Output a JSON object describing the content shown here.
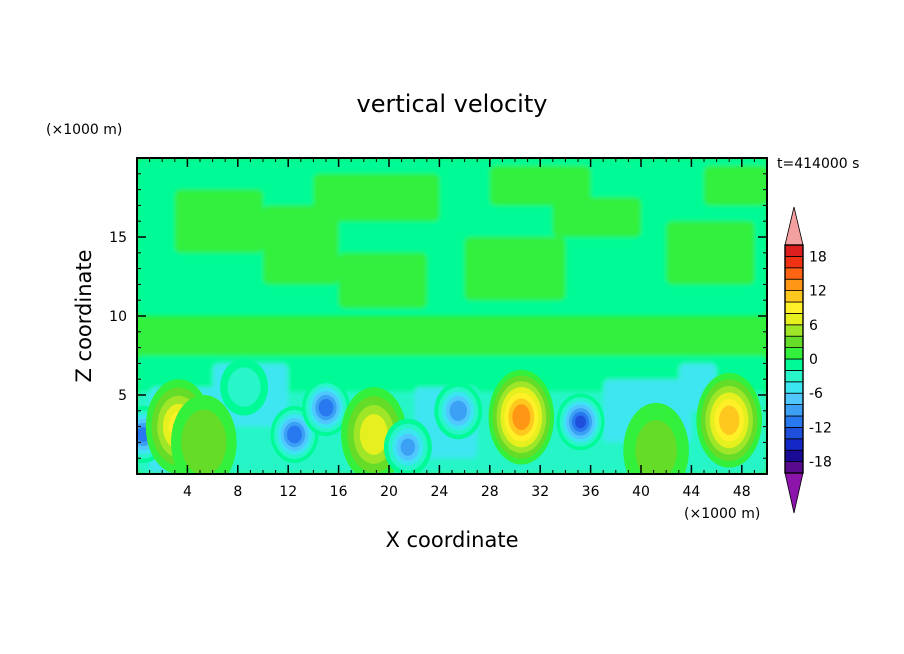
{
  "chart_data": {
    "type": "heatmap",
    "title": "vertical velocity",
    "xlabel": "X coordinate",
    "ylabel": "Z coordinate",
    "x_unit": "(×1000 m)",
    "y_unit": "(×1000 m)",
    "time_label": "t=414000 s",
    "xlim": [
      0,
      50
    ],
    "ylim": [
      0,
      20
    ],
    "x_ticks": [
      4,
      8,
      12,
      16,
      20,
      24,
      28,
      32,
      36,
      40,
      44,
      48
    ],
    "y_ticks": [
      5,
      10,
      15
    ],
    "colorbar": {
      "levels": [
        -20,
        -18,
        -16,
        -14,
        -12,
        -10,
        -8,
        -6,
        -4,
        -2,
        0,
        2,
        4,
        6,
        8,
        10,
        12,
        14,
        16,
        18,
        20
      ],
      "tick_labels": [
        18,
        12,
        6,
        0,
        -6,
        -12,
        -18
      ],
      "colors": [
        "#5a0a8c",
        "#1a0a96",
        "#1428c8",
        "#1e50dc",
        "#2878f0",
        "#3ca0f5",
        "#50c8ff",
        "#3ce6f0",
        "#28f5c8",
        "#00fa96",
        "#32f03c",
        "#64dc28",
        "#a0e628",
        "#e6f01e",
        "#fff028",
        "#ffc81e",
        "#ff9614",
        "#ff6414",
        "#f03214",
        "#dc1e1e"
      ],
      "over_color": "#f5a0a0",
      "under_color": "#8c14aa"
    },
    "features": [
      {
        "x": 0.5,
        "z": 2.5,
        "w": -12
      },
      {
        "x": 3.3,
        "z": 3.0,
        "w": 10
      },
      {
        "x": 5.3,
        "z": 2.0,
        "w": 5
      },
      {
        "x": 8.5,
        "z": 5.5,
        "w": -5
      },
      {
        "x": 12.5,
        "z": 2.5,
        "w": -13
      },
      {
        "x": 15.0,
        "z": 4.2,
        "w": -13
      },
      {
        "x": 18.8,
        "z": 2.5,
        "w": 9
      },
      {
        "x": 21.5,
        "z": 1.7,
        "w": -10
      },
      {
        "x": 25.5,
        "z": 4.0,
        "w": -11
      },
      {
        "x": 30.5,
        "z": 3.6,
        "w": 15
      },
      {
        "x": 35.2,
        "z": 3.3,
        "w": -14
      },
      {
        "x": 41.2,
        "z": 1.5,
        "w": 4
      },
      {
        "x": 47.0,
        "z": 3.4,
        "w": 13
      }
    ]
  }
}
